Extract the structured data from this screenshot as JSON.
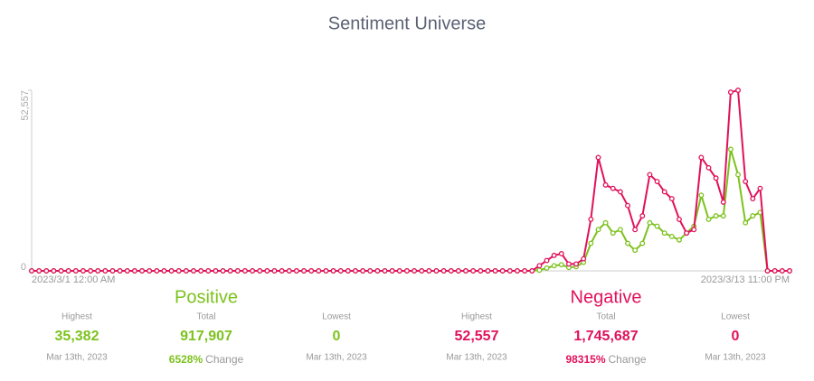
{
  "chart_data": {
    "type": "line",
    "title": "Sentiment Universe",
    "categories": [
      "2023/3/1 12:00 AM",
      null,
      null,
      null,
      null,
      null,
      null,
      null,
      null,
      null,
      null,
      null,
      null,
      null,
      null,
      null,
      null,
      null,
      null,
      null,
      null,
      null,
      null,
      null,
      null,
      null,
      null,
      null,
      null,
      null,
      null,
      null,
      null,
      null,
      null,
      null,
      null,
      null,
      null,
      null,
      null,
      null,
      null,
      null,
      null,
      null,
      null,
      null,
      null,
      null,
      null,
      null,
      null,
      null,
      null,
      null,
      null,
      null,
      null,
      null,
      null,
      null,
      null,
      null,
      null,
      null,
      null,
      null,
      null,
      null,
      null,
      null,
      null,
      null,
      null,
      null,
      null,
      null,
      null,
      null,
      null,
      null,
      null,
      null,
      null,
      null,
      null,
      null,
      null,
      null,
      null,
      null,
      null,
      null,
      null,
      null,
      null,
      null,
      null,
      null,
      null,
      null,
      null,
      "2023/3/13 11:00 PM"
    ],
    "series": [
      {
        "name": "Positive",
        "color": "#7dc21e",
        "values": [
          0,
          0,
          0,
          0,
          0,
          0,
          0,
          0,
          0,
          0,
          0,
          0,
          0,
          0,
          0,
          0,
          0,
          0,
          0,
          0,
          0,
          0,
          0,
          0,
          0,
          0,
          0,
          0,
          0,
          0,
          0,
          0,
          0,
          0,
          0,
          0,
          0,
          0,
          0,
          0,
          0,
          0,
          0,
          0,
          0,
          0,
          0,
          0,
          0,
          0,
          0,
          0,
          0,
          0,
          0,
          0,
          0,
          0,
          0,
          0,
          0,
          0,
          0,
          0,
          0,
          0,
          0,
          0,
          0,
          200,
          800,
          1500,
          1800,
          1000,
          1200,
          2500,
          8000,
          12000,
          14000,
          11000,
          12000,
          8000,
          6000,
          8000,
          14000,
          13000,
          11000,
          10000,
          9000,
          11000,
          13000,
          22000,
          15000,
          16000,
          16000,
          35382,
          28000,
          14000,
          16000,
          17000,
          0,
          0,
          0,
          0
        ]
      },
      {
        "name": "Negative",
        "color": "#e0125b",
        "values": [
          0,
          0,
          0,
          0,
          0,
          0,
          0,
          0,
          0,
          0,
          0,
          0,
          0,
          0,
          0,
          0,
          0,
          0,
          0,
          0,
          0,
          0,
          0,
          0,
          0,
          0,
          0,
          0,
          0,
          0,
          0,
          0,
          0,
          0,
          0,
          0,
          0,
          0,
          0,
          0,
          0,
          0,
          0,
          0,
          0,
          0,
          0,
          0,
          0,
          0,
          0,
          0,
          0,
          0,
          0,
          0,
          0,
          0,
          0,
          0,
          0,
          0,
          0,
          0,
          0,
          0,
          0,
          0,
          0,
          1500,
          3000,
          4500,
          5000,
          2000,
          2000,
          3500,
          15000,
          33000,
          25000,
          24000,
          23000,
          19000,
          12000,
          16000,
          28000,
          26000,
          23000,
          21000,
          15000,
          11000,
          12000,
          33000,
          30000,
          27000,
          20000,
          52000,
          52557,
          26000,
          21000,
          24000,
          0,
          0,
          0,
          0
        ]
      }
    ],
    "ylim": [
      0,
      52557
    ],
    "yticks": [
      0,
      {
        "value": 52557,
        "label": "52,557"
      }
    ]
  },
  "stats": [
    {
      "highest": {
        "label": "Highest",
        "value": "35,382",
        "date": "Mar 13th, 2023"
      },
      "total": {
        "label": "Total",
        "value": "917,907",
        "change": "6528%",
        "change_label": "Change"
      },
      "lowest": {
        "label": "Lowest",
        "value": "0",
        "date": "Mar 13th, 2023"
      }
    },
    {
      "highest": {
        "label": "Highest",
        "value": "52,557",
        "date": "Mar 13th, 2023"
      },
      "total": {
        "label": "Total",
        "value": "1,745,687",
        "change": "98315%",
        "change_label": "Change"
      },
      "lowest": {
        "label": "Lowest",
        "value": "0",
        "date": "Mar 13th, 2023"
      }
    }
  ]
}
